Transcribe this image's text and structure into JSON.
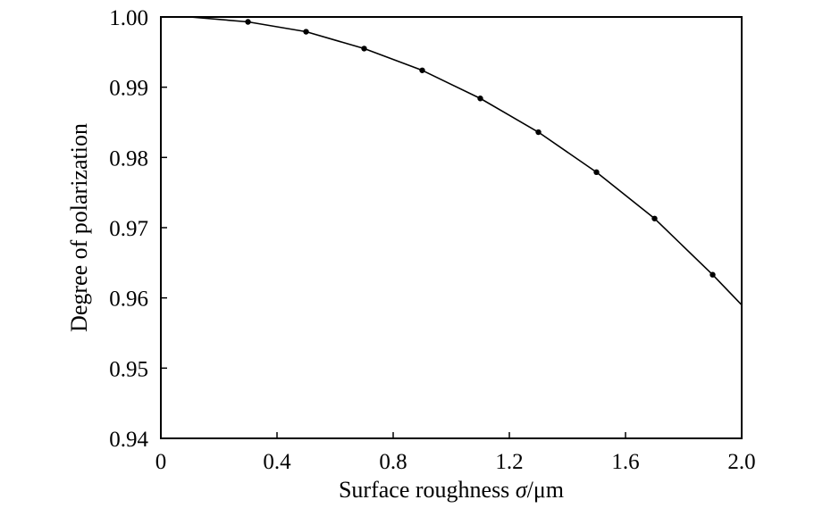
{
  "chart_data": {
    "type": "line",
    "xlabel_parts": [
      "Surface roughness ",
      "σ",
      "/μm"
    ],
    "ylabel": "Degree of polarization",
    "xlim": [
      0,
      2.0
    ],
    "ylim": [
      0.94,
      1.0
    ],
    "xticks": [
      "0",
      "0.4",
      "0.8",
      "1.2",
      "1.6",
      "2.0"
    ],
    "xtick_values": [
      0,
      0.4,
      0.8,
      1.2,
      1.6,
      2.0
    ],
    "yticks": [
      "0.94",
      "0.95",
      "0.96",
      "0.97",
      "0.98",
      "0.99",
      "1.00"
    ],
    "ytick_values": [
      0.94,
      0.95,
      0.96,
      0.97,
      0.98,
      0.99,
      1.0
    ],
    "grid": false,
    "series": [
      {
        "style": "solid-line",
        "x": [
          0,
          0.1,
          0.3,
          0.5,
          0.7,
          0.9,
          1.1,
          1.3,
          1.5,
          1.7,
          1.9,
          2.0
        ],
        "y": [
          1.0,
          1.0,
          0.9993,
          0.9979,
          0.9955,
          0.9924,
          0.9884,
          0.9836,
          0.9779,
          0.9713,
          0.9633,
          0.959
        ]
      },
      {
        "style": "markers",
        "x": [
          0.3,
          0.5,
          0.7,
          0.9,
          1.1,
          1.3,
          1.5,
          1.7,
          1.9
        ],
        "y": [
          0.9993,
          0.9979,
          0.9955,
          0.9924,
          0.9884,
          0.9836,
          0.9779,
          0.9713,
          0.9633
        ]
      }
    ],
    "colors": {
      "line": "#000000",
      "marker": "#000000",
      "frame": "#000000"
    }
  }
}
